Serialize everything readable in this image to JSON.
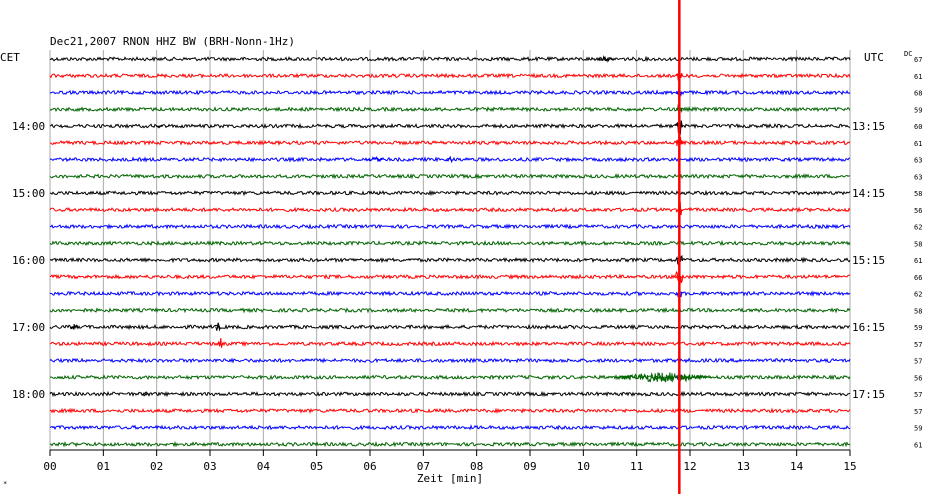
{
  "header": {
    "title": "Dec21,2007   RNON HHZ BW (BRH-Nonn-1Hz)",
    "left_zone": "CET",
    "right_zone": "UTC",
    "dc_label": "DC"
  },
  "footer": {
    "corner_mark": "*"
  },
  "chart_data": {
    "type": "line",
    "title": "Dec21,2007   RNON HHZ BW (BRH-Nonn-1Hz)",
    "xlabel": "Zeit [min]",
    "ylabel": "",
    "xlim": [
      0,
      15
    ],
    "x_ticks": [
      "00",
      "01",
      "02",
      "03",
      "04",
      "05",
      "06",
      "07",
      "08",
      "09",
      "10",
      "11",
      "12",
      "13",
      "14",
      "15"
    ],
    "grid": true,
    "trace_colors": [
      "#000000",
      "#ff0000",
      "#0000ff",
      "#006400"
    ],
    "traces": 24,
    "left_time_labels": [
      {
        "trace": 4,
        "label": "14:00"
      },
      {
        "trace": 8,
        "label": "15:00"
      },
      {
        "trace": 12,
        "label": "16:00"
      },
      {
        "trace": 16,
        "label": "17:00"
      },
      {
        "trace": 20,
        "label": "18:00"
      }
    ],
    "right_time_labels": [
      {
        "trace": 4,
        "label": "13:15"
      },
      {
        "trace": 8,
        "label": "14:15"
      },
      {
        "trace": 12,
        "label": "15:15"
      },
      {
        "trace": 16,
        "label": "16:15"
      },
      {
        "trace": 20,
        "label": "17:15"
      }
    ],
    "dc_values": [
      "67",
      "61",
      "68",
      "59",
      "60",
      "61",
      "63",
      "63",
      "58",
      "56",
      "62",
      "58",
      "61",
      "66",
      "62",
      "58",
      "59",
      "57",
      "57",
      "56",
      "57",
      "57",
      "59",
      "61"
    ],
    "marker_line": {
      "x_min": 11.8,
      "color": "#ff0000"
    }
  }
}
